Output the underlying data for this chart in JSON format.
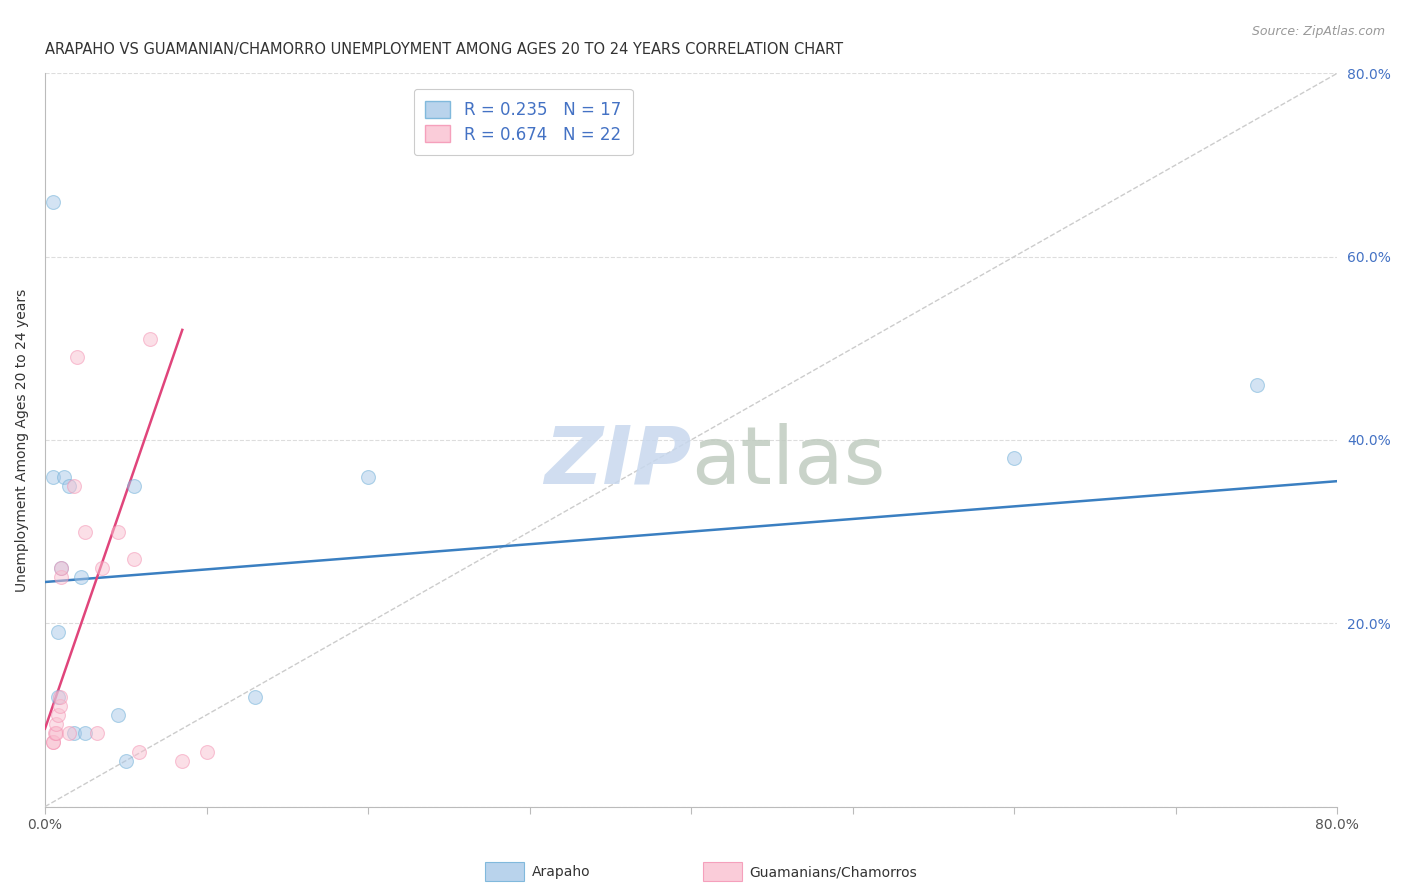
{
  "title": "ARAPAHO VS GUAMANIAN/CHAMORRO UNEMPLOYMENT AMONG AGES 20 TO 24 YEARS CORRELATION CHART",
  "source": "Source: ZipAtlas.com",
  "ylabel": "Unemployment Among Ages 20 to 24 years",
  "xlim": [
    0.0,
    0.8
  ],
  "ylim": [
    0.0,
    0.8
  ],
  "xticks": [
    0.0,
    0.1,
    0.2,
    0.3,
    0.4,
    0.5,
    0.6,
    0.7,
    0.8
  ],
  "yticks": [
    0.0,
    0.2,
    0.4,
    0.6,
    0.8
  ],
  "background_color": "#ffffff",
  "grid_color": "#dddddd",
  "arapaho_color": "#a8c8e8",
  "arapaho_edge_color": "#6baed6",
  "guamanian_color": "#f9c0d0",
  "guamanian_edge_color": "#f48fb1",
  "arapaho_line_color": "#3a7fc1",
  "guamanian_line_color": "#e0457b",
  "diagonal_color": "#cccccc",
  "legend_R_arapaho": "0.235",
  "legend_N_arapaho": "17",
  "legend_R_guamanian": "0.674",
  "legend_N_guamanian": "22",
  "arapaho_scatter_x": [
    0.005,
    0.005,
    0.012,
    0.015,
    0.018,
    0.022,
    0.025,
    0.045,
    0.05,
    0.055,
    0.13,
    0.2,
    0.6,
    0.75,
    0.008,
    0.008,
    0.01
  ],
  "arapaho_scatter_y": [
    0.66,
    0.36,
    0.36,
    0.35,
    0.08,
    0.25,
    0.08,
    0.1,
    0.05,
    0.35,
    0.12,
    0.36,
    0.38,
    0.46,
    0.19,
    0.12,
    0.26
  ],
  "guamanian_scatter_x": [
    0.005,
    0.005,
    0.006,
    0.007,
    0.007,
    0.008,
    0.009,
    0.009,
    0.01,
    0.01,
    0.015,
    0.018,
    0.02,
    0.025,
    0.032,
    0.035,
    0.045,
    0.055,
    0.058,
    0.065,
    0.085,
    0.1
  ],
  "guamanian_scatter_y": [
    0.07,
    0.07,
    0.08,
    0.08,
    0.09,
    0.1,
    0.11,
    0.12,
    0.25,
    0.26,
    0.08,
    0.35,
    0.49,
    0.3,
    0.08,
    0.26,
    0.3,
    0.27,
    0.06,
    0.51,
    0.05,
    0.06
  ],
  "arapaho_line_x0": 0.0,
  "arapaho_line_x1": 0.8,
  "arapaho_line_y0": 0.245,
  "arapaho_line_y1": 0.355,
  "guamanian_line_x0": 0.0,
  "guamanian_line_x1": 0.085,
  "guamanian_line_y0": 0.085,
  "guamanian_line_y1": 0.52,
  "marker_size": 100,
  "marker_alpha": 0.5,
  "title_fontsize": 10.5,
  "label_fontsize": 10,
  "tick_fontsize": 10,
  "legend_fontsize": 12,
  "right_ytick_color": "#4472c4",
  "right_ytick_fontsize": 10,
  "watermark_zip_color": "#c8d8ee",
  "watermark_atlas_color": "#c0ccc0"
}
